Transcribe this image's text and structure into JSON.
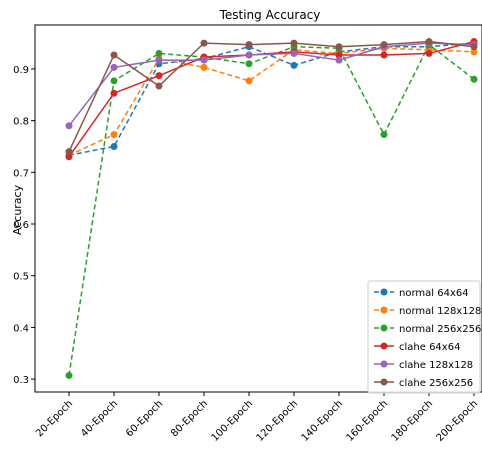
{
  "chart_data": {
    "type": "line",
    "title": "Testing Accuracy",
    "xlabel": "",
    "ylabel": "Accuracy",
    "categories": [
      "20-Epoch",
      "40-Epoch",
      "60-Epoch",
      "80-Epoch",
      "100-Epoch",
      "120-Epoch",
      "140-Epoch",
      "160-Epoch",
      "180-Epoch",
      "200-Epoch"
    ],
    "ylim": [
      0.275,
      0.985
    ],
    "yticks": [
      0.3,
      0.4,
      0.5,
      0.6,
      0.7,
      0.8,
      0.9
    ],
    "ytick_labels": [
      "0.3",
      "0.4",
      "0.5",
      "0.6",
      "0.7",
      "0.8",
      "0.9"
    ],
    "grid": false,
    "legend_position": "lower right",
    "series": [
      {
        "name": "normal 64x64",
        "color": "#1f77b4",
        "dashed": true,
        "values": [
          0.733,
          0.75,
          0.91,
          0.92,
          0.943,
          0.907,
          0.933,
          0.943,
          0.943,
          0.95
        ]
      },
      {
        "name": "normal 128x128",
        "color": "#ff7f0e",
        "dashed": true,
        "values": [
          0.733,
          0.773,
          0.92,
          0.903,
          0.877,
          0.937,
          0.93,
          0.94,
          0.937,
          0.933
        ]
      },
      {
        "name": "normal 256x256",
        "color": "#2ca02c",
        "dashed": true,
        "values": [
          0.307,
          0.877,
          0.93,
          0.923,
          0.91,
          0.943,
          0.94,
          0.773,
          0.947,
          0.88
        ]
      },
      {
        "name": "clahe 64x64",
        "color": "#d62728",
        "dashed": false,
        "values": [
          0.73,
          0.853,
          0.887,
          0.923,
          0.927,
          0.933,
          0.927,
          0.927,
          0.93,
          0.953
        ]
      },
      {
        "name": "clahe 128x128",
        "color": "#9467bd",
        "dashed": false,
        "values": [
          0.79,
          0.903,
          0.917,
          0.917,
          0.927,
          0.93,
          0.917,
          0.943,
          0.95,
          0.947
        ]
      },
      {
        "name": "clahe 256x256",
        "color": "#8c564b",
        "dashed": false,
        "values": [
          0.74,
          0.927,
          0.867,
          0.95,
          0.947,
          0.95,
          0.943,
          0.947,
          0.953,
          0.943
        ]
      }
    ]
  }
}
